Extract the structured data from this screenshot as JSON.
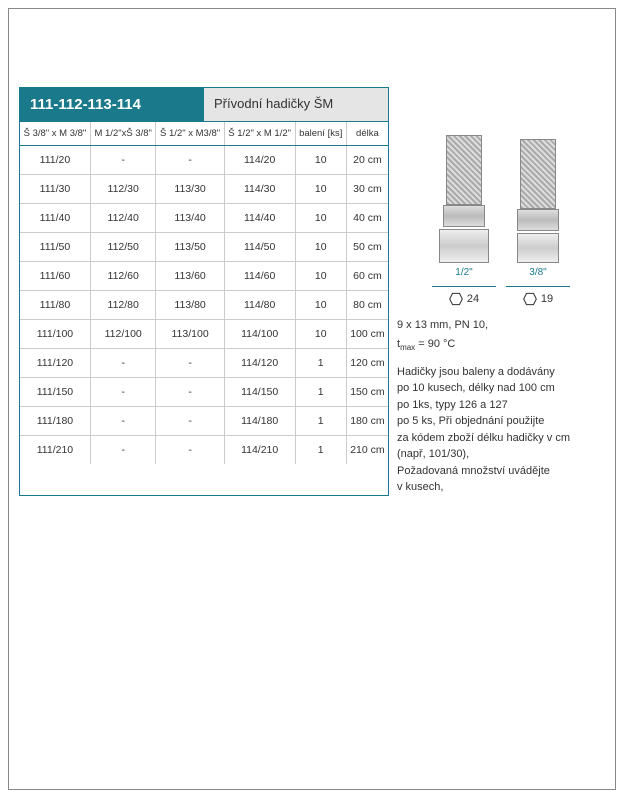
{
  "header": {
    "code": "111-112-113-114",
    "title": "Přívodní hadičky ŠM"
  },
  "table": {
    "columns": [
      "Š 3/8\" x M 3/8\"",
      "M 1/2\"xŠ 3/8\"",
      "Š 1/2\" x M3/8\"",
      "Š 1/2\" x M 1/2\"",
      "balení [ks]",
      "délka"
    ],
    "rows": [
      [
        "111/20",
        "-",
        "-",
        "114/20",
        "10",
        "20 cm"
      ],
      [
        "111/30",
        "112/30",
        "113/30",
        "114/30",
        "10",
        "30 cm"
      ],
      [
        "111/40",
        "112/40",
        "113/40",
        "114/40",
        "10",
        "40 cm"
      ],
      [
        "111/50",
        "112/50",
        "113/50",
        "114/50",
        "10",
        "50 cm"
      ],
      [
        "111/60",
        "112/60",
        "113/60",
        "114/60",
        "10",
        "60 cm"
      ],
      [
        "111/80",
        "112/80",
        "113/80",
        "114/80",
        "10",
        "80 cm"
      ],
      [
        "111/100",
        "112/100",
        "113/100",
        "114/100",
        "10",
        "100 cm"
      ],
      [
        "111/120",
        "-",
        "-",
        "114/120",
        "1",
        "120 cm"
      ],
      [
        "111/150",
        "-",
        "-",
        "114/150",
        "1",
        "150 cm"
      ],
      [
        "111/180",
        "-",
        "-",
        "114/180",
        "1",
        "180 cm"
      ],
      [
        "111/210",
        "-",
        "-",
        "114/210",
        "1",
        "210 cm"
      ]
    ]
  },
  "diagram": {
    "fittings": [
      {
        "size_label": "1/2\"",
        "hex_label": "24",
        "nut_class": ""
      },
      {
        "size_label": "3/8\"",
        "hex_label": "19",
        "nut_class": "small"
      }
    ]
  },
  "spec": {
    "line1": "9 x 13 mm, PN 10,",
    "line2_pre": "t",
    "line2_sub": "max",
    "line2_post": " = 90 °C"
  },
  "description": {
    "l1": "Hadičky jsou baleny a dodávány",
    "l2": "po 10 kusech, délky nad 100 cm",
    "l3": "po 1ks, typy 126 a 127",
    "l4": "po 5 ks, Při objednání použijte",
    "l5": "za kódem zboží délku hadičky v cm",
    "l6": "(např, 101/30),",
    "l7": "Požadovaná množství uvádějte",
    "l8": "v kusech,"
  },
  "colors": {
    "accent": "#1a7a8c",
    "border_gray": "#cccccc",
    "bg_gray": "#e5e5e5",
    "text": "#333333"
  }
}
